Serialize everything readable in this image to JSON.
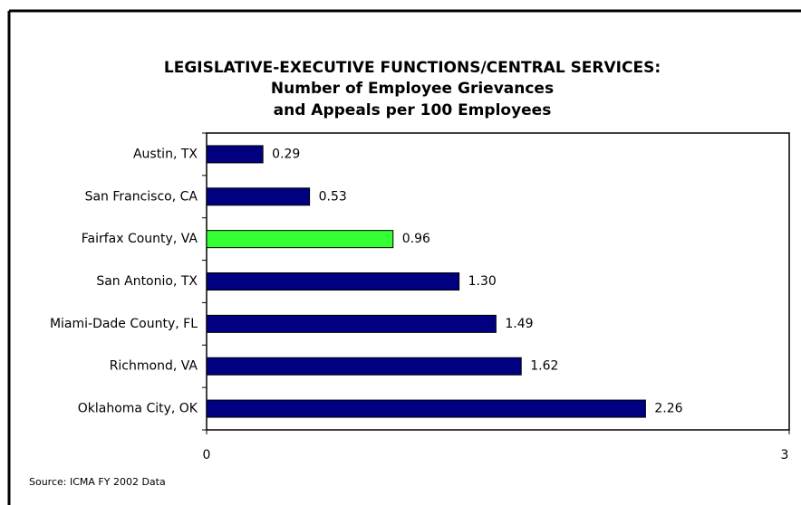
{
  "chart_data": {
    "type": "bar",
    "orientation": "horizontal",
    "title": [
      "LEGISLATIVE-EXECUTIVE FUNCTIONS/CENTRAL SERVICES:",
      "Number of Employee Grievances",
      "and Appeals per 100 Employees"
    ],
    "categories": [
      "Austin, TX",
      "San Francisco, CA",
      "Fairfax County, VA",
      "San Antonio, TX",
      "Miami-Dade County, FL",
      "Richmond, VA",
      "Oklahoma City, OK"
    ],
    "values": [
      0.29,
      0.53,
      0.96,
      1.3,
      1.49,
      1.62,
      2.26
    ],
    "value_labels": [
      "0.29",
      "0.53",
      "0.96",
      "1.30",
      "1.49",
      "1.62",
      "2.26"
    ],
    "colors": [
      "#000080",
      "#000080",
      "#33ff33",
      "#000080",
      "#000080",
      "#000080",
      "#000080"
    ],
    "xlim": [
      0,
      3
    ],
    "xticks": [
      0,
      3
    ],
    "grid": false,
    "source": "Source: ICMA FY 2002 Data"
  }
}
